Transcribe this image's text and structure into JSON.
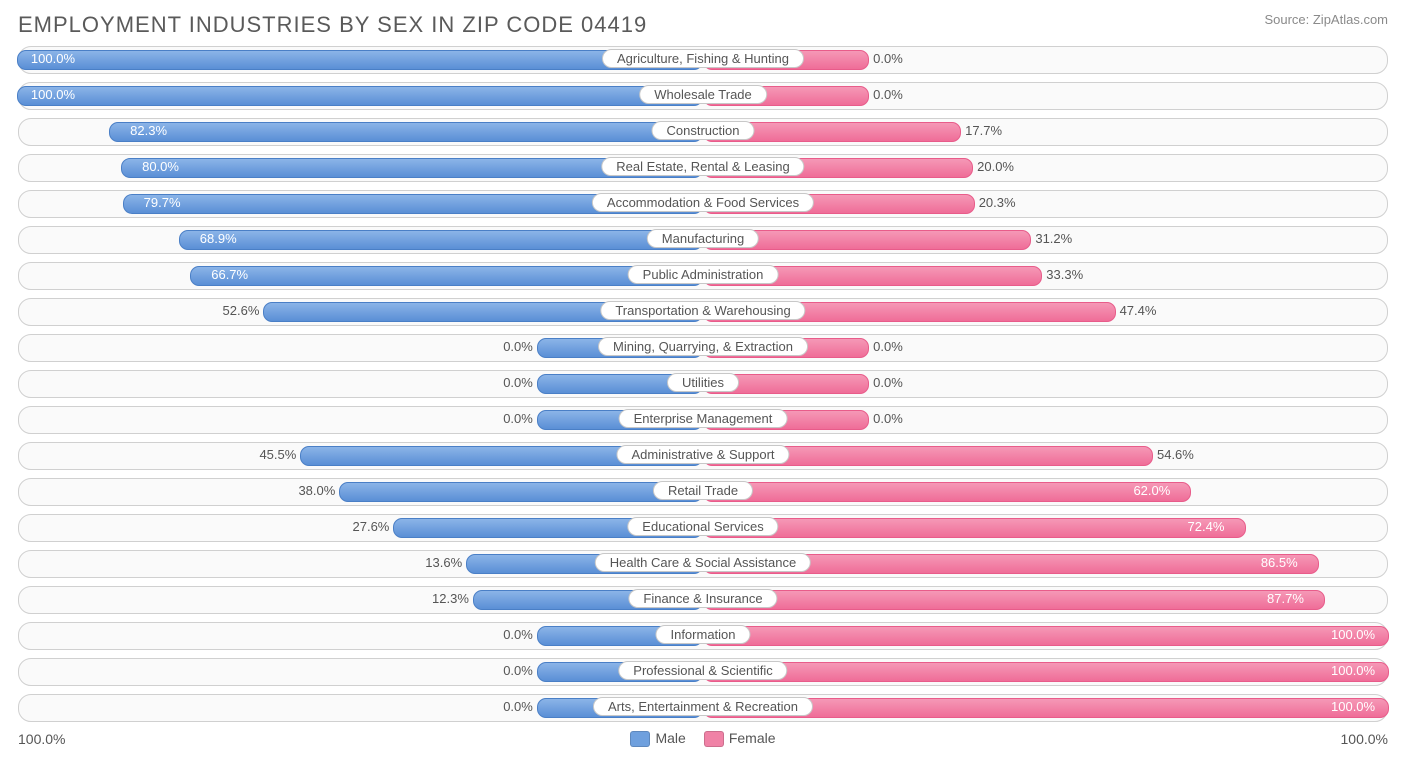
{
  "title": "EMPLOYMENT INDUSTRIES BY SEX IN ZIP CODE 04419",
  "source": "Source: ZipAtlas.com",
  "axis": {
    "left": "100.0%",
    "right": "100.0%"
  },
  "legend": {
    "male": "Male",
    "female": "Female"
  },
  "colors": {
    "male_fill": "#6fa0de",
    "male_border": "#4a7fc6",
    "female_fill": "#f082a6",
    "female_border": "#e85c8a",
    "row_border": "#d0d0d0",
    "row_bg": "#fafafa",
    "text": "#555555"
  },
  "chart": {
    "type": "diverging-bar",
    "half_width_pct": 50,
    "min_bar_pct": 12,
    "rows": [
      {
        "label": "Agriculture, Fishing & Hunting",
        "male": 100.0,
        "female": 0.0
      },
      {
        "label": "Wholesale Trade",
        "male": 100.0,
        "female": 0.0
      },
      {
        "label": "Construction",
        "male": 82.3,
        "female": 17.7
      },
      {
        "label": "Real Estate, Rental & Leasing",
        "male": 80.0,
        "female": 20.0
      },
      {
        "label": "Accommodation & Food Services",
        "male": 79.7,
        "female": 20.3
      },
      {
        "label": "Manufacturing",
        "male": 68.9,
        "female": 31.2
      },
      {
        "label": "Public Administration",
        "male": 66.7,
        "female": 33.3
      },
      {
        "label": "Transportation & Warehousing",
        "male": 52.6,
        "female": 47.4
      },
      {
        "label": "Mining, Quarrying, & Extraction",
        "male": 0.0,
        "female": 0.0
      },
      {
        "label": "Utilities",
        "male": 0.0,
        "female": 0.0
      },
      {
        "label": "Enterprise Management",
        "male": 0.0,
        "female": 0.0
      },
      {
        "label": "Administrative & Support",
        "male": 45.5,
        "female": 54.6
      },
      {
        "label": "Retail Trade",
        "male": 38.0,
        "female": 62.0
      },
      {
        "label": "Educational Services",
        "male": 27.6,
        "female": 72.4
      },
      {
        "label": "Health Care & Social Assistance",
        "male": 13.6,
        "female": 86.5
      },
      {
        "label": "Finance & Insurance",
        "male": 12.3,
        "female": 87.7
      },
      {
        "label": "Information",
        "male": 0.0,
        "female": 100.0
      },
      {
        "label": "Professional & Scientific",
        "male": 0.0,
        "female": 100.0
      },
      {
        "label": "Arts, Entertainment & Recreation",
        "male": 0.0,
        "female": 100.0
      }
    ]
  }
}
